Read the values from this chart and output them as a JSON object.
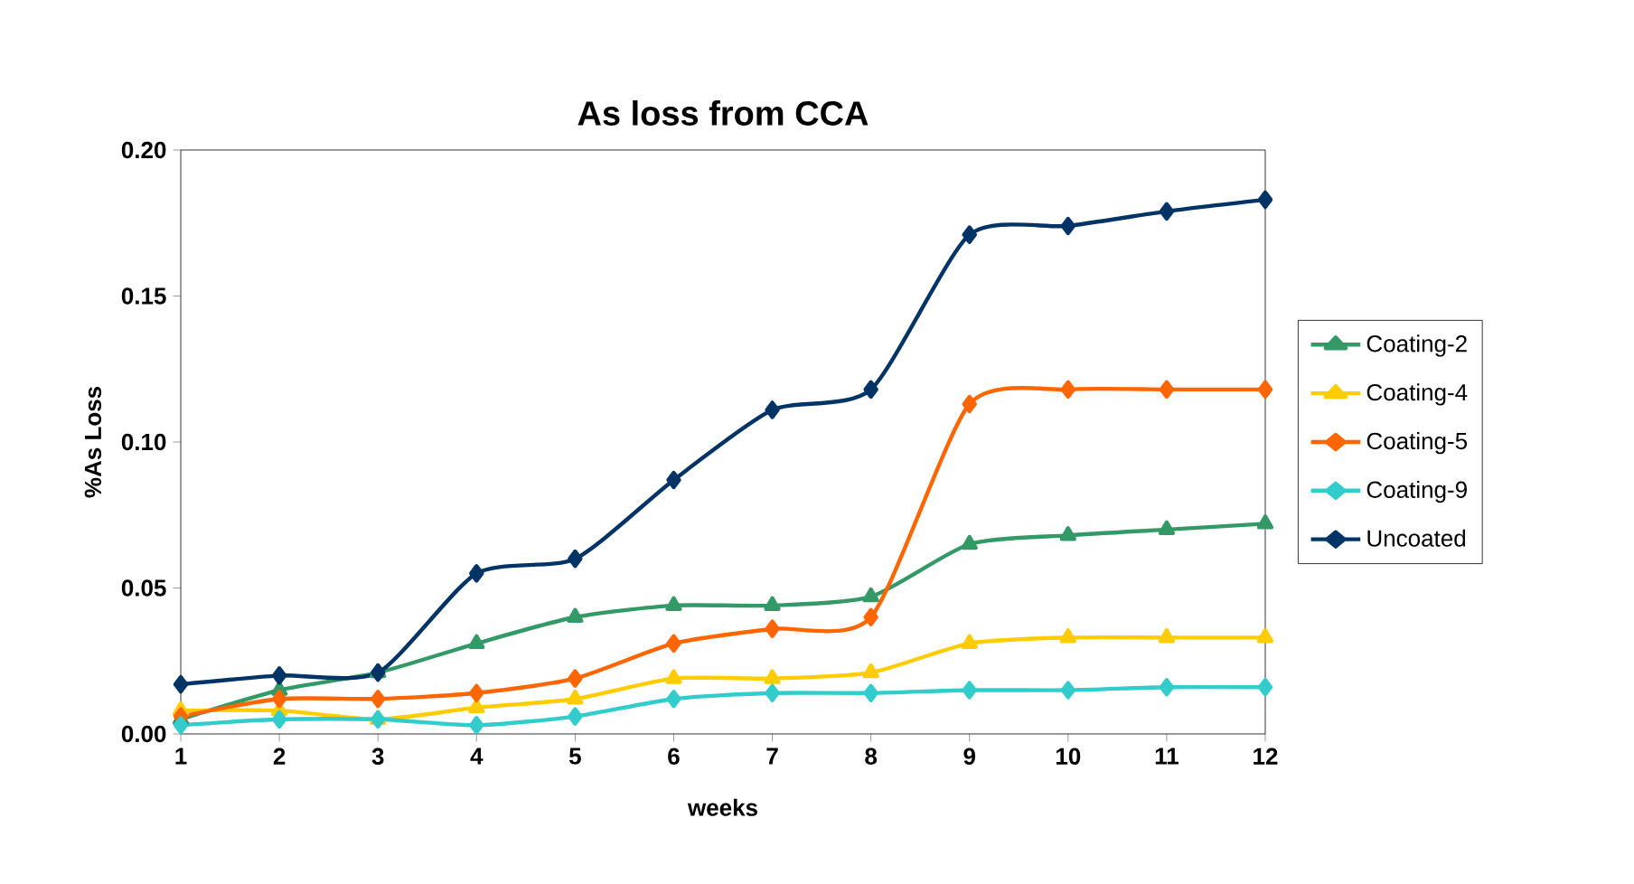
{
  "chart_data": {
    "type": "line",
    "title": "As loss from CCA",
    "xlabel": "weeks",
    "ylabel": "%As Loss",
    "x": [
      1,
      2,
      3,
      4,
      5,
      6,
      7,
      8,
      9,
      10,
      11,
      12
    ],
    "xlim": [
      1,
      12
    ],
    "xticks": [
      1,
      2,
      3,
      4,
      5,
      6,
      7,
      8,
      9,
      10,
      11,
      12
    ],
    "ylim": [
      0,
      0.2
    ],
    "yticks": [
      {
        "value": 0,
        "label": "0.00"
      },
      {
        "value": 0.05,
        "label": "0.05"
      },
      {
        "value": 0.1,
        "label": "0.10"
      },
      {
        "value": 0.15,
        "label": "0.15"
      },
      {
        "value": 0.2,
        "label": "0.20"
      }
    ],
    "grid": false,
    "legend": "right",
    "line_style": "solid",
    "series": [
      {
        "name": "Coating-2",
        "color": "#339966",
        "marker": "triangle",
        "values": [
          0.005,
          0.015,
          0.021,
          0.031,
          0.04,
          0.044,
          0.044,
          0.047,
          0.065,
          0.068,
          0.07,
          0.072
        ]
      },
      {
        "name": "Coating-4",
        "color": "#ffcc00",
        "marker": "triangle",
        "values": [
          0.008,
          0.008,
          0.005,
          0.009,
          0.012,
          0.019,
          0.019,
          0.021,
          0.031,
          0.033,
          0.033,
          0.033
        ]
      },
      {
        "name": "Coating-5",
        "color": "#ff6600",
        "marker": "diamond",
        "values": [
          0.006,
          0.012,
          0.012,
          0.014,
          0.019,
          0.031,
          0.036,
          0.04,
          0.113,
          0.118,
          0.118,
          0.118
        ]
      },
      {
        "name": "Coating-9",
        "color": "#33cccc",
        "marker": "diamond",
        "values": [
          0.003,
          0.005,
          0.005,
          0.003,
          0.006,
          0.012,
          0.014,
          0.014,
          0.015,
          0.015,
          0.016,
          0.016
        ]
      },
      {
        "name": "Uncoated",
        "color": "#003366",
        "marker": "diamond",
        "values": [
          0.017,
          0.02,
          0.021,
          0.055,
          0.06,
          0.087,
          0.111,
          0.118,
          0.171,
          0.174,
          0.179,
          0.183
        ]
      }
    ]
  }
}
